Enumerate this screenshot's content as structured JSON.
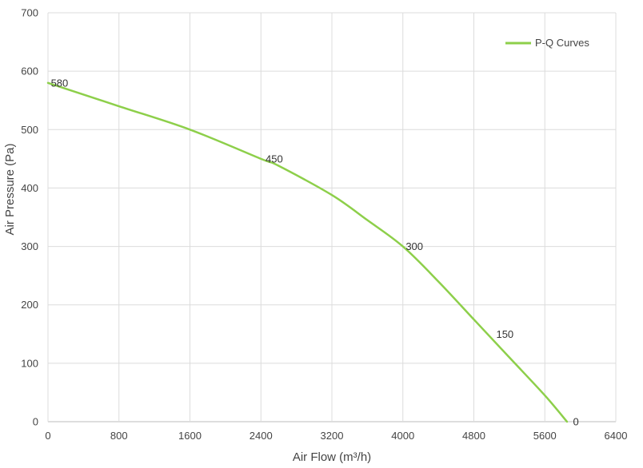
{
  "chart_data": {
    "type": "line",
    "title": "",
    "xlabel": "Air Flow  (m³/h)",
    "ylabel": "Air Pressure  (Pa)",
    "xlim": [
      0,
      6400
    ],
    "ylim": [
      0,
      700
    ],
    "x_ticks": [
      0,
      800,
      1600,
      2400,
      3200,
      4000,
      4800,
      5600,
      6400
    ],
    "y_ticks": [
      0,
      100,
      200,
      300,
      400,
      500,
      600,
      700
    ],
    "grid": true,
    "legend_position": "top-right",
    "series": [
      {
        "name": "P-Q Curves",
        "color": "#8dcf4a",
        "x": [
          0,
          800,
          1600,
          2400,
          2600,
          3200,
          3600,
          4000,
          4400,
          4800,
          5200,
          5600,
          5850
        ],
        "y": [
          580,
          540,
          500,
          450,
          438,
          388,
          345,
          300,
          240,
          175,
          110,
          45,
          0
        ]
      }
    ],
    "annotations": [
      {
        "text": "580",
        "x": 130,
        "y": 580
      },
      {
        "text": "450",
        "x": 2550,
        "y": 450
      },
      {
        "text": "300",
        "x": 4130,
        "y": 300
      },
      {
        "text": "150",
        "x": 5150,
        "y": 150
      },
      {
        "text": "0",
        "x": 5950,
        "y": 0
      }
    ]
  }
}
